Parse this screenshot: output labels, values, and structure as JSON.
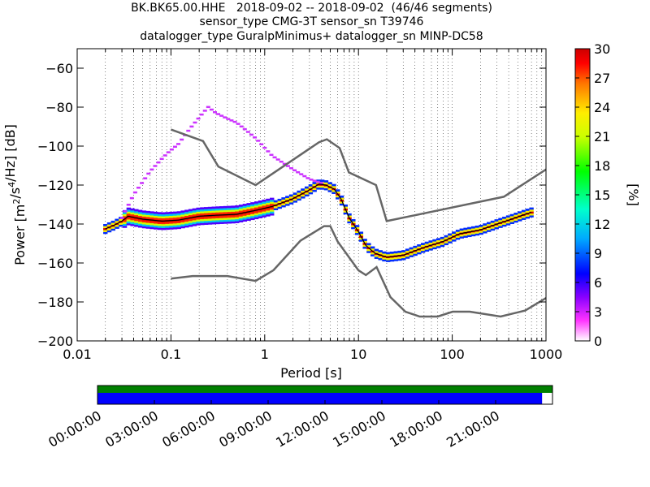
{
  "title_lines": [
    "BK.BK65.00.HHE   2018-09-02 -- 2018-09-02  (46/46 segments)",
    "sensor_type CMG-3T sensor_sn T39746",
    "datalogger_type GuralpMinimus+ datalogger_sn MINP-DC58"
  ],
  "chart_data": {
    "type": "heatmap",
    "xlabel": "Period [s]",
    "ylabel": "Power [m^2/s^4/Hz] [dB]",
    "xscale": "log",
    "xlim": [
      0.01,
      1000
    ],
    "ylim": [
      -200,
      -50
    ],
    "xticks": [
      0.01,
      0.1,
      1,
      10,
      100,
      1000
    ],
    "xtick_labels": [
      "0.01",
      "0.1",
      "1",
      "10",
      "100",
      "1000"
    ],
    "yticks": [
      -200,
      -180,
      -160,
      -140,
      -120,
      -100,
      -80,
      -60
    ],
    "ytick_labels": [
      "−200",
      "−180",
      "−160",
      "−140",
      "−120",
      "−100",
      "−80",
      "−60"
    ],
    "grid": "dotted vertical at log minor ticks",
    "colorbar": {
      "label": "[%]",
      "range": [
        0,
        30
      ],
      "ticks": [
        0,
        3,
        6,
        9,
        12,
        15,
        18,
        21,
        24,
        27,
        30
      ],
      "colormap": [
        "#ffffff",
        "#ff33ff",
        "#8800ff",
        "#0000ff",
        "#00aaff",
        "#00ffcc",
        "#00ff00",
        "#ccff00",
        "#ffee00",
        "#ff7700",
        "#ff0000",
        "#cc0000"
      ]
    },
    "series": [
      {
        "name": "NHNM",
        "color": "#666666",
        "x": [
          0.1,
          0.22,
          0.32,
          0.8,
          3.8,
          4.6,
          6.3,
          7.9,
          15.4,
          20,
          354.8,
          1000
        ],
        "y": [
          -91.5,
          -97.4,
          -110.5,
          -120,
          -98,
          -96.5,
          -101,
          -113.5,
          -120,
          -138.5,
          -126,
          -112
        ]
      },
      {
        "name": "NLNM",
        "color": "#666666",
        "x": [
          0.1,
          0.17,
          0.4,
          0.8,
          1.24,
          2.4,
          4.3,
          5,
          6,
          10,
          12,
          15.6,
          21.9,
          31.6,
          45,
          70,
          101,
          154,
          328,
          600,
          1000
        ],
        "y": [
          -168,
          -166.7,
          -166.7,
          -169.2,
          -163.7,
          -148.6,
          -141.1,
          -141.1,
          -149,
          -163.8,
          -166.2,
          -162.1,
          -177.5,
          -185,
          -187.5,
          -187.5,
          -185,
          -185,
          -187.5,
          -184.4,
          -178
        ]
      },
      {
        "name": "mode",
        "color": "#000000",
        "x": [
          0.02,
          0.025,
          0.03,
          0.035,
          0.05,
          0.08,
          0.12,
          0.2,
          0.3,
          0.5,
          0.8,
          1.2,
          2,
          3,
          3.8,
          4.5,
          5.5,
          6.5,
          8,
          10,
          12,
          15,
          20,
          30,
          50,
          80,
          120,
          200,
          300,
          400,
          600,
          700
        ],
        "y": [
          -142.5,
          -140.5,
          -138.5,
          -136,
          -137.5,
          -138.5,
          -138,
          -136,
          -135.5,
          -135,
          -133,
          -131,
          -127,
          -122.5,
          -119.5,
          -120,
          -122,
          -127,
          -137,
          -144,
          -151,
          -155,
          -157,
          -156,
          -152,
          -149,
          -145,
          -143,
          -140,
          -138,
          -135,
          -134
        ]
      },
      {
        "name": "upper outliers",
        "color": "#cc00ff",
        "x": [
          0.03,
          0.04,
          0.06,
          0.09,
          0.12,
          0.16,
          0.22,
          0.25,
          0.3,
          0.4,
          0.5,
          0.6,
          0.8,
          1.2,
          2,
          3,
          4
        ],
        "y": [
          -137,
          -125,
          -113,
          -104,
          -99,
          -91,
          -83,
          -80,
          -83,
          -86,
          -88,
          -91,
          -96,
          -105,
          -112,
          -117,
          -119
        ]
      }
    ],
    "timeline": {
      "tick_labels": [
        "00:00:00",
        "03:00:00",
        "06:00:00",
        "09:00:00",
        "12:00:00",
        "15:00:00",
        "18:00:00",
        "21:00:00"
      ],
      "tick_hours": [
        0,
        3,
        6,
        9,
        12,
        15,
        18,
        21
      ],
      "range_hours": [
        0,
        24
      ],
      "bars": [
        {
          "color": "#008000",
          "start": 0,
          "end": 24
        },
        {
          "color": "#0000ff",
          "start": 0,
          "end": 23.45
        }
      ]
    }
  }
}
